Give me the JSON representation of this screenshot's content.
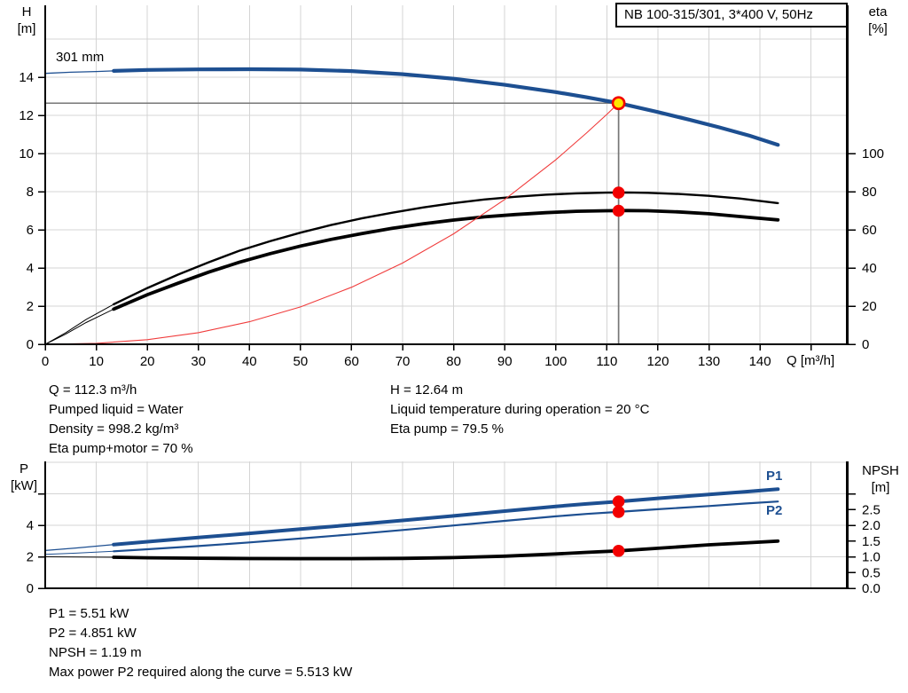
{
  "title_box": {
    "label": "NB 100-315/301, 3*400 V, 50Hz"
  },
  "top_chart": {
    "y_left_unit_1": "H",
    "y_left_unit_2": "[m]",
    "y_right_unit_1": "eta",
    "y_right_unit_2": "[%]",
    "x_axis_label": "Q [m³/h]",
    "curve_label": "301 mm"
  },
  "bottom_chart": {
    "y_left_unit_1": "P",
    "y_left_unit_2": "[kW]",
    "y_right_unit_1": "NPSH",
    "y_right_unit_2": "[m]",
    "p1_label": "P1",
    "p2_label": "P2"
  },
  "operating_point_info": {
    "left": [
      "Q = 112.3 m³/h",
      "Pumped liquid = Water",
      "Density = 998.2 kg/m³",
      "Eta pump+motor = 70 %"
    ],
    "right": [
      "H = 12.64 m",
      "Liquid temperature during operation = 20 °C",
      "Eta pump = 79.5 %"
    ]
  },
  "power_info": {
    "lines": [
      "P1 = 5.51 kW",
      "P2 = 4.851 kW",
      "NPSH = 1.19 m",
      "Max power P2 required along the curve = 5.513 kW"
    ]
  },
  "colors": {
    "curve_blue": "#1d4f91",
    "curve_black": "#000000",
    "system_red": "#f03c3c",
    "marker_red": "#f20000",
    "duty_yellow": "#ffe600",
    "grid": "#d4d4d4",
    "guide": "#777777"
  },
  "chart_data": [
    {
      "type": "line",
      "id": "head-efficiency-chart",
      "title": "NB 100-315/301, 3*400 V, 50Hz",
      "xlabel": "Q [m³/h]",
      "ylabel_left": "H [m]",
      "ylabel_right": "eta [%]",
      "xlim": [
        0,
        157
      ],
      "ylim_left": [
        0,
        17.7
      ],
      "ylim_right": [
        0,
        177
      ],
      "x": {
        "grid_step": 10,
        "ticks": [
          {
            "v": 0,
            "t": "0"
          },
          {
            "v": 10,
            "t": "10"
          },
          {
            "v": 20,
            "t": "20"
          },
          {
            "v": 30,
            "t": "30"
          },
          {
            "v": 40,
            "t": "40"
          },
          {
            "v": 50,
            "t": "50"
          },
          {
            "v": 60,
            "t": "60"
          },
          {
            "v": 70,
            "t": "70"
          },
          {
            "v": 80,
            "t": "80"
          },
          {
            "v": 90,
            "t": "90"
          },
          {
            "v": 100,
            "t": "100"
          },
          {
            "v": 110,
            "t": "110"
          },
          {
            "v": 120,
            "t": "120"
          },
          {
            "v": 130,
            "t": "130"
          },
          {
            "v": 140,
            "t": "140"
          }
        ],
        "unlabeled_ticks": [
          150
        ]
      },
      "y_left": {
        "ticks": [
          {
            "v": 0,
            "t": "0"
          },
          {
            "v": 2,
            "t": "2"
          },
          {
            "v": 4,
            "t": "4"
          },
          {
            "v": 6,
            "t": "6"
          },
          {
            "v": 8,
            "t": "8"
          },
          {
            "v": 10,
            "t": "10"
          },
          {
            "v": 12,
            "t": "12"
          },
          {
            "v": 14,
            "t": "14"
          }
        ],
        "unlabeled_ticks": [],
        "grid": [
          2,
          4,
          6,
          8,
          10,
          12,
          14,
          16
        ]
      },
      "y_right": {
        "ticks": [
          {
            "v": 0,
            "t": "0"
          },
          {
            "v": 20,
            "t": "20"
          },
          {
            "v": 40,
            "t": "40"
          },
          {
            "v": 60,
            "t": "60"
          },
          {
            "v": 80,
            "t": "80"
          },
          {
            "v": 100,
            "t": "100"
          }
        ],
        "unlabeled_ticks": []
      },
      "guide_lines": {
        "q": 112.3,
        "h": 12.64
      },
      "series": [
        {
          "name": "pump-curve-301mm",
          "axis": "left",
          "color": "#1d4f91",
          "width_thin": 1.3,
          "width_thick": 4.2,
          "thick_from": 13.4,
          "points": [
            [
              0,
              14.2
            ],
            [
              5,
              14.26
            ],
            [
              10,
              14.3
            ],
            [
              13.4,
              14.33
            ],
            [
              20,
              14.38
            ],
            [
              30,
              14.41
            ],
            [
              40,
              14.42
            ],
            [
              50,
              14.4
            ],
            [
              60,
              14.32
            ],
            [
              70,
              14.16
            ],
            [
              80,
              13.92
            ],
            [
              90,
              13.6
            ],
            [
              100,
              13.22
            ],
            [
              106,
              12.95
            ],
            [
              112.3,
              12.64
            ],
            [
              120,
              12.17
            ],
            [
              126,
              11.78
            ],
            [
              132,
              11.37
            ],
            [
              138,
              10.93
            ],
            [
              143.5,
              10.45
            ]
          ]
        },
        {
          "name": "eta-pump-curve",
          "axis": "right",
          "color": "#000000",
          "width_thin": 1,
          "width_thick": 2.4,
          "thick_from": 13.4,
          "points": [
            [
              0,
              0
            ],
            [
              4,
              6
            ],
            [
              8,
              13
            ],
            [
              13.4,
              21
            ],
            [
              20,
              29.5
            ],
            [
              26,
              36.5
            ],
            [
              32,
              43
            ],
            [
              38,
              49
            ],
            [
              44,
              54
            ],
            [
              50,
              58.5
            ],
            [
              56,
              62.5
            ],
            [
              62,
              66
            ],
            [
              68,
              69
            ],
            [
              74,
              71.7
            ],
            [
              80,
              74
            ],
            [
              86,
              75.9
            ],
            [
              92,
              77.3
            ],
            [
              98,
              78.4
            ],
            [
              104,
              79.1
            ],
            [
              110,
              79.5
            ],
            [
              114,
              79.6
            ],
            [
              118,
              79.4
            ],
            [
              124,
              78.8
            ],
            [
              130,
              77.8
            ],
            [
              136,
              76.4
            ],
            [
              143.5,
              74
            ]
          ]
        },
        {
          "name": "eta-pump-motor-curve",
          "axis": "right",
          "color": "#000000",
          "width_thin": 1,
          "width_thick": 3.8,
          "thick_from": 13.4,
          "points": [
            [
              0,
              0
            ],
            [
              4,
              5.3
            ],
            [
              8,
              11.4
            ],
            [
              13.4,
              18.4
            ],
            [
              20,
              26
            ],
            [
              26,
              32
            ],
            [
              32,
              37.8
            ],
            [
              38,
              43
            ],
            [
              44,
              47.5
            ],
            [
              50,
              51.5
            ],
            [
              56,
              55
            ],
            [
              62,
              58
            ],
            [
              68,
              60.8
            ],
            [
              74,
              63.1
            ],
            [
              80,
              65.1
            ],
            [
              86,
              66.8
            ],
            [
              92,
              68
            ],
            [
              98,
              69
            ],
            [
              104,
              69.7
            ],
            [
              110,
              70
            ],
            [
              114,
              70.1
            ],
            [
              118,
              70
            ],
            [
              124,
              69.4
            ],
            [
              130,
              68.4
            ],
            [
              136,
              67
            ],
            [
              143.5,
              65.2
            ]
          ]
        },
        {
          "name": "system-curve",
          "axis": "left",
          "color": "#f03c3c",
          "width_thin": 1.1,
          "width_thick": 1.1,
          "thick_from": null,
          "points": [
            [
              0,
              0
            ],
            [
              10,
              0.05
            ],
            [
              20,
              0.24
            ],
            [
              30,
              0.61
            ],
            [
              40,
              1.18
            ],
            [
              50,
              1.96
            ],
            [
              60,
              2.99
            ],
            [
              70,
              4.26
            ],
            [
              80,
              5.79
            ],
            [
              90,
              7.59
            ],
            [
              100,
              9.67
            ],
            [
              106,
              11.07
            ],
            [
              110,
              12.05
            ],
            [
              112.3,
              12.64
            ]
          ]
        }
      ],
      "markers": [
        {
          "q": 112.3,
          "v": 79.5,
          "axis": "right",
          "kind": "dot"
        },
        {
          "q": 112.3,
          "v": 70,
          "axis": "right",
          "kind": "dot"
        },
        {
          "q": 112.3,
          "v": 12.64,
          "axis": "left",
          "kind": "duty"
        }
      ],
      "duty_point": {
        "q": 112.3,
        "h": 12.64,
        "eta_pump": 79.5,
        "eta_pump_motor": 70
      }
    },
    {
      "type": "line",
      "id": "power-npsh-chart",
      "xlabel": "",
      "ylabel_left": "P [kW]",
      "ylabel_right": "NPSH [m]",
      "xlim": [
        0,
        157
      ],
      "ylim_left": [
        0,
        8.06
      ],
      "ylim_right": [
        0,
        4.03
      ],
      "x": {
        "grid_step": 10,
        "ticks": [],
        "unlabeled_ticks": []
      },
      "y_left": {
        "ticks": [
          {
            "v": 0,
            "t": "0"
          },
          {
            "v": 2,
            "t": "2"
          },
          {
            "v": 4,
            "t": "4"
          }
        ],
        "unlabeled_ticks": [
          6
        ],
        "grid": [
          2,
          4,
          6,
          8
        ]
      },
      "y_right": {
        "ticks": [
          {
            "v": 0,
            "t": "0.0"
          },
          {
            "v": 0.5,
            "t": "0.5"
          },
          {
            "v": 1,
            "t": "1.0"
          },
          {
            "v": 1.5,
            "t": "1.5"
          },
          {
            "v": 2,
            "t": "2.0"
          },
          {
            "v": 2.5,
            "t": "2.5"
          }
        ],
        "unlabeled_ticks": [
          3
        ]
      },
      "guide_lines": null,
      "series": [
        {
          "name": "p1-curve",
          "axis": "left",
          "color": "#1d4f91",
          "width_thin": 1.2,
          "width_thick": 4,
          "thick_from": 13.4,
          "points": [
            [
              0,
              2.4
            ],
            [
              6,
              2.56
            ],
            [
              13.4,
              2.78
            ],
            [
              20,
              2.96
            ],
            [
              30,
              3.22
            ],
            [
              40,
              3.49
            ],
            [
              50,
              3.76
            ],
            [
              60,
              4.03
            ],
            [
              70,
              4.31
            ],
            [
              80,
              4.6
            ],
            [
              90,
              4.9
            ],
            [
              100,
              5.2
            ],
            [
              106,
              5.36
            ],
            [
              112.3,
              5.51
            ],
            [
              120,
              5.71
            ],
            [
              130,
              5.96
            ],
            [
              137,
              6.13
            ],
            [
              143.5,
              6.3
            ]
          ]
        },
        {
          "name": "p2-curve",
          "axis": "left",
          "color": "#1d4f91",
          "width_thin": 1,
          "width_thick": 2.2,
          "thick_from": 13.4,
          "points": [
            [
              0,
              2.15
            ],
            [
              6,
              2.23
            ],
            [
              13.4,
              2.35
            ],
            [
              20,
              2.48
            ],
            [
              30,
              2.68
            ],
            [
              40,
              2.91
            ],
            [
              50,
              3.16
            ],
            [
              60,
              3.42
            ],
            [
              70,
              3.7
            ],
            [
              80,
              3.99
            ],
            [
              90,
              4.28
            ],
            [
              100,
              4.57
            ],
            [
              106,
              4.72
            ],
            [
              112.3,
              4.851
            ],
            [
              120,
              5.02
            ],
            [
              130,
              5.22
            ],
            [
              137,
              5.38
            ],
            [
              143.5,
              5.51
            ]
          ]
        },
        {
          "name": "npsh-curve",
          "axis": "right",
          "color": "#000000",
          "width_thin": 1,
          "width_thick": 3.8,
          "thick_from": 13.4,
          "points": [
            [
              0,
              1.0
            ],
            [
              10,
              0.99
            ],
            [
              13.4,
              0.985
            ],
            [
              20,
              0.97
            ],
            [
              30,
              0.955
            ],
            [
              40,
              0.945
            ],
            [
              50,
              0.94
            ],
            [
              60,
              0.94
            ],
            [
              70,
              0.95
            ],
            [
              80,
              0.975
            ],
            [
              90,
              1.02
            ],
            [
              100,
              1.09
            ],
            [
              106,
              1.14
            ],
            [
              112.3,
              1.19
            ],
            [
              120,
              1.27
            ],
            [
              130,
              1.38
            ],
            [
              137,
              1.44
            ],
            [
              143.5,
              1.5
            ]
          ]
        }
      ],
      "markers": [
        {
          "q": 112.3,
          "v": 5.51,
          "axis": "left",
          "kind": "dot"
        },
        {
          "q": 112.3,
          "v": 4.851,
          "axis": "left",
          "kind": "dot"
        },
        {
          "q": 112.3,
          "v": 1.19,
          "axis": "right",
          "kind": "dot"
        }
      ],
      "duty_point": {
        "q": 112.3,
        "p1": 5.51,
        "p2": 4.851,
        "npsh": 1.19
      }
    }
  ]
}
